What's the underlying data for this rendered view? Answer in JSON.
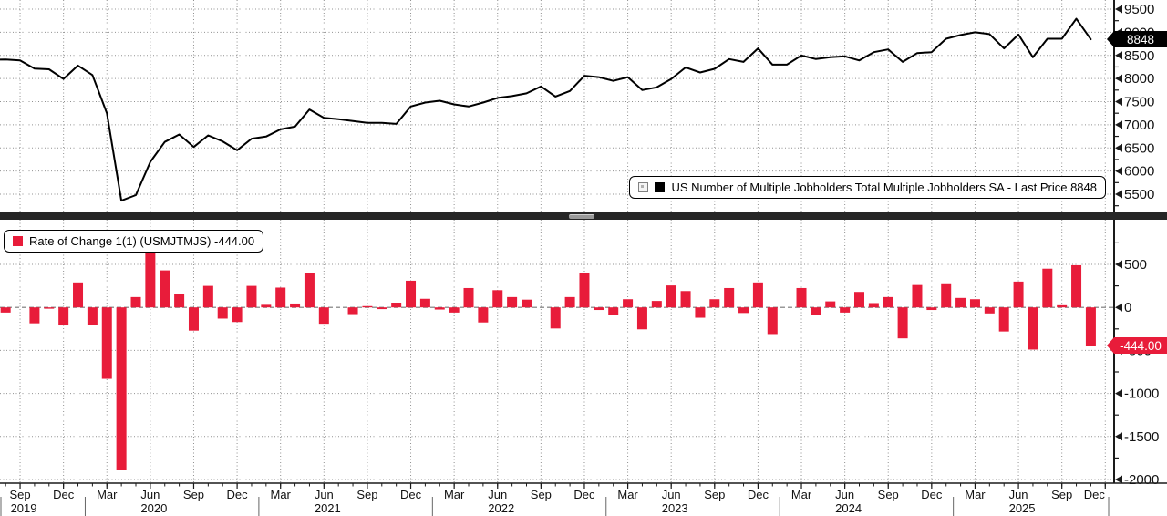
{
  "colors": {
    "bar": "#e81c3a",
    "line": "#000000",
    "grid": "#909090",
    "zero_line": "#777777",
    "axis": "#1a1a1a",
    "price_label_bg": "#000000",
    "price_label_fg": "#ffffff",
    "change_label_bg": "#e81c3a",
    "change_label_fg": "#ffffff",
    "divider": "#262626"
  },
  "top_panel": {
    "legend": {
      "checkbox_icon": "checkbox",
      "swatch_color": "#000000",
      "label": "US Number of Multiple Jobholders Total Multiple Jobholders SA - Last Price 8848"
    },
    "last_price_label": "8848",
    "y_ticks": [
      "9500",
      "9000",
      "8500",
      "8000",
      "7500",
      "7000",
      "6500",
      "6000",
      "5500"
    ]
  },
  "bottom_panel": {
    "legend": {
      "swatch_color": "#e81c3a",
      "label": "Rate of Change 1(1) (USMJTMJS) -444.00"
    },
    "last_value_label": "-444.00",
    "y_ticks": [
      "500",
      "0",
      "-500",
      "-1000",
      "-1500",
      "-2000"
    ]
  },
  "x_axis": {
    "ticks": [
      {
        "m": 2,
        "label": "Sep",
        "year": "2019"
      },
      {
        "m": 5,
        "label": "Dec"
      },
      {
        "m": 8,
        "label": "Mar"
      },
      {
        "m": 11,
        "label": "Jun",
        "year": "2020"
      },
      {
        "m": 14,
        "label": "Sep"
      },
      {
        "m": 17,
        "label": "Dec"
      },
      {
        "m": 20,
        "label": "Mar"
      },
      {
        "m": 23,
        "label": "Jun",
        "year": "2021"
      },
      {
        "m": 26,
        "label": "Sep"
      },
      {
        "m": 29,
        "label": "Dec"
      },
      {
        "m": 32,
        "label": "Mar"
      },
      {
        "m": 35,
        "label": "Jun",
        "year": "2022"
      },
      {
        "m": 38,
        "label": "Sep"
      },
      {
        "m": 41,
        "label": "Dec"
      },
      {
        "m": 44,
        "label": "Mar"
      },
      {
        "m": 47,
        "label": "Jun",
        "year": "2023"
      },
      {
        "m": 50,
        "label": "Sep"
      },
      {
        "m": 53,
        "label": "Dec"
      },
      {
        "m": 56,
        "label": "Mar"
      },
      {
        "m": 59,
        "label": "Jun",
        "year": "2024"
      },
      {
        "m": 62,
        "label": "Sep"
      },
      {
        "m": 65,
        "label": "Dec"
      },
      {
        "m": 68,
        "label": "Mar"
      },
      {
        "m": 71,
        "label": "Jun",
        "year": "2025"
      },
      {
        "m": 74,
        "label": "Sep"
      },
      {
        "m": 77,
        "label": "Dec"
      }
    ]
  },
  "chart_data": [
    {
      "type": "line",
      "name": "US Number of Multiple Jobholders Total Multiple Jobholders SA",
      "frequency": "monthly",
      "x_start": "2019-07",
      "x_end": "2025-11",
      "last_price": 8848,
      "ylim": [
        5100,
        9700
      ],
      "y_tick_values": [
        9500,
        9000,
        8500,
        8000,
        7500,
        7000,
        6500,
        6000,
        5500
      ],
      "grid": "dotted",
      "legend_position": "bottom-right",
      "values": [
        8405,
        8410,
        8390,
        8215,
        8200,
        7990,
        8280,
        8075,
        7245,
        5360,
        5480,
        6200,
        6630,
        6790,
        6520,
        6770,
        6640,
        6450,
        6700,
        6745,
        6900,
        6960,
        7330,
        7150,
        7120,
        7080,
        7040,
        7040,
        7020,
        7395,
        7480,
        7520,
        7440,
        7395,
        7480,
        7580,
        7620,
        7680,
        7830,
        7610,
        7730,
        8060,
        8030,
        7950,
        8030,
        7750,
        7810,
        7990,
        8240,
        8130,
        8210,
        8420,
        8360,
        8650,
        8300,
        8300,
        8500,
        8420,
        8460,
        8480,
        8390,
        8570,
        8630,
        8360,
        8550,
        8570,
        8860,
        8940,
        9000,
        8960,
        8650,
        8950,
        8460,
        8860,
        8860,
        9292,
        8848
      ]
    },
    {
      "type": "bar",
      "name": "Rate of Change 1(1) (USMJTMJS)",
      "frequency": "monthly",
      "x_start": "2019-08",
      "x_end": "2025-11",
      "last_value": -444.0,
      "ylim": [
        -2050,
        1000
      ],
      "y_tick_values": [
        500,
        0,
        -500,
        -1000,
        -1500,
        -2000
      ],
      "grid": "dotted",
      "legend_position": "top-left",
      "values": [
        -60,
        -5,
        -185,
        -15,
        -210,
        290,
        -205,
        -830,
        -1885,
        120,
        720,
        430,
        160,
        -270,
        250,
        -130,
        -170,
        250,
        30,
        230,
        45,
        400,
        -190,
        0,
        -78,
        15,
        -20,
        55,
        310,
        100,
        -25,
        -60,
        225,
        -175,
        200,
        120,
        90,
        0,
        -245,
        120,
        400,
        -30,
        -90,
        95,
        -255,
        75,
        255,
        190,
        -120,
        95,
        225,
        -65,
        290,
        -310,
        0,
        225,
        -90,
        70,
        -60,
        180,
        50,
        120,
        -360,
        260,
        -30,
        280,
        110,
        95,
        -70,
        -280,
        300,
        -490,
        450,
        25,
        490,
        -444
      ]
    }
  ]
}
